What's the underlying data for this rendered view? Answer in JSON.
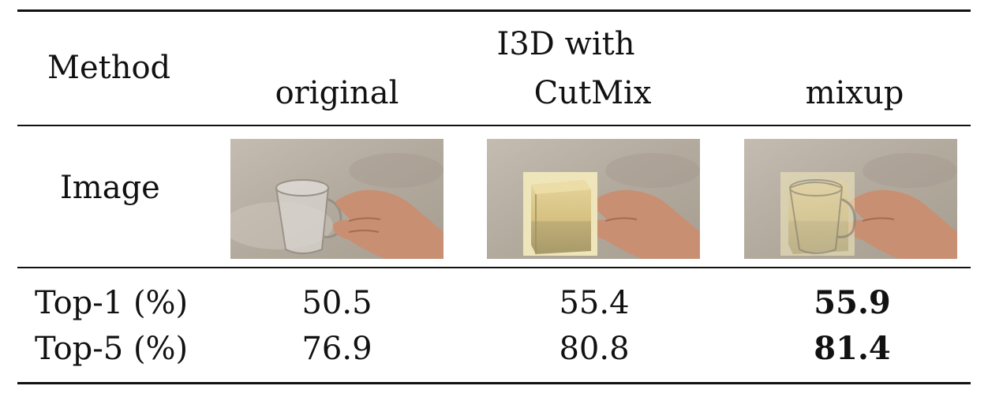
{
  "table": {
    "header": {
      "method_label": "Method",
      "group_label": "I3D with",
      "columns": [
        "original",
        "CutMix",
        "mixup"
      ]
    },
    "image_row_label": "Image",
    "images": [
      {
        "name": "original-glass-hand-image",
        "icon": "glass-hand-photo"
      },
      {
        "name": "cutmix-wood-block-image",
        "icon": "wood-block-patch-photo"
      },
      {
        "name": "mixup-blended-image",
        "icon": "blended-photo"
      }
    ],
    "rows": [
      {
        "label": "Top-1 (%)",
        "values": [
          "50.5",
          "55.4",
          "55.9"
        ],
        "best_index": 2
      },
      {
        "label": "Top-5 (%)",
        "values": [
          "76.9",
          "80.8",
          "81.4"
        ],
        "best_index": 2
      }
    ]
  },
  "colors": {
    "rule": "#111111",
    "sand": "#b9b0a4",
    "skin": "#c98f72",
    "wood": "#d9c58a"
  }
}
